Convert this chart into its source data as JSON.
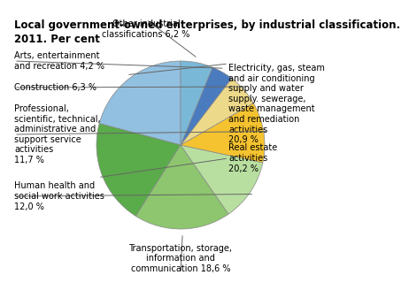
{
  "title": "Local government-owned enterprises, by industrial classification.\n2011. Per cent",
  "slices": [
    {
      "label": "Electricity, gas, steam\nand air conditioning\nsupply and water\nsupply. sewerage,\nwaste management\nand remediation\nactivities\n20,9 %",
      "value": 20.9,
      "color": "#92C0E0"
    },
    {
      "label": "Real estate\nactivities\n20,2 %",
      "value": 20.2,
      "color": "#5AAB4A"
    },
    {
      "label": "Transportation, storage,\ninformation and\ncommunication 18,6 %",
      "value": 18.6,
      "color": "#8DC66E"
    },
    {
      "label": "Human health and\nsocial work activities\n12,0 %",
      "value": 12.0,
      "color": "#B8DFA0"
    },
    {
      "label": "Professional,\nscientific, technical,\nadministrative and\nsupport service\nactivities\n11,7 %",
      "value": 11.7,
      "color": "#F5C330"
    },
    {
      "label": "Construction 6,3 %",
      "value": 6.3,
      "color": "#EDD98A"
    },
    {
      "label": "Arts, entertainment\nand recreation 4,2 %",
      "value": 4.2,
      "color": "#4A7BBF"
    },
    {
      "label": "Other industrial\nclassifications 6,2 %",
      "value": 6.2,
      "color": "#7AB8D8"
    }
  ],
  "title_fontsize": 8.5,
  "label_fontsize": 7.0,
  "background_color": "#FFFFFF",
  "start_angle": 90,
  "wedge_edge_color": "#888888",
  "wedge_lw": 0.5
}
